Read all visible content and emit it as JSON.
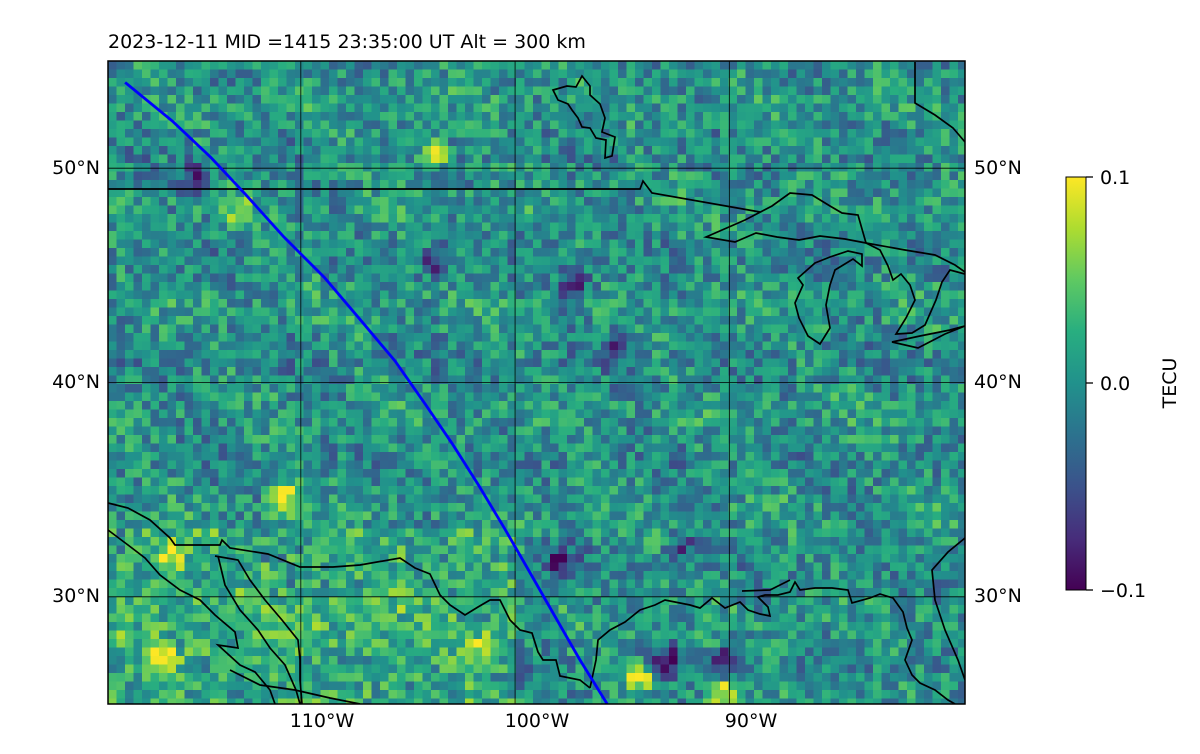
{
  "header": {
    "title": "2023-12-11  MID =1415    23:35:00  UT  Alt = 300 km"
  },
  "map": {
    "lon_range": [
      -119,
      -79
    ],
    "lat_range": [
      25,
      55
    ],
    "lon_grid": [
      -110,
      -100,
      -90
    ],
    "lat_grid": [
      30,
      40,
      50
    ],
    "lon_tick_labels": [
      "110°W",
      "100°W",
      "90°W"
    ],
    "lat_tick_labels_left": [
      "30°N",
      "40°N",
      "50°N"
    ],
    "lat_tick_labels_right": [
      "30°N",
      "40°N",
      "50°N"
    ],
    "colormap": "viridis",
    "track_color": "#0000ff",
    "track": [
      [
        -118.2,
        54.0
      ],
      [
        -116.0,
        52.2
      ],
      [
        -114.2,
        50.5
      ],
      [
        -112.6,
        48.8
      ],
      [
        -110.8,
        46.8
      ],
      [
        -108.9,
        44.9
      ],
      [
        -107.2,
        42.9
      ],
      [
        -105.6,
        41.0
      ],
      [
        -104.2,
        39.0
      ],
      [
        -102.9,
        37.1
      ],
      [
        -101.7,
        35.2
      ],
      [
        -100.5,
        33.2
      ],
      [
        -99.4,
        31.3
      ],
      [
        -98.2,
        29.2
      ],
      [
        -97.0,
        27.1
      ],
      [
        -95.7,
        25.0
      ]
    ],
    "anomalies": [
      {
        "lon": -115,
        "lat": 49.6,
        "value": -0.09
      },
      {
        "lon": -103.7,
        "lat": 45.6,
        "value": -0.08
      },
      {
        "lon": -97.2,
        "lat": 44.6,
        "value": -0.09
      },
      {
        "lon": -103.8,
        "lat": 50.6,
        "value": 0.09
      },
      {
        "lon": -116.2,
        "lat": 31.8,
        "value": 0.1
      },
      {
        "lon": -110.8,
        "lat": 34.6,
        "value": 0.09
      },
      {
        "lon": -101.5,
        "lat": 27.5,
        "value": 0.08
      },
      {
        "lon": -93.0,
        "lat": 27.0,
        "value": -0.1
      },
      {
        "lon": -90.0,
        "lat": 27.0,
        "value": -0.1
      },
      {
        "lon": -94.2,
        "lat": 26.2,
        "value": 0.1
      },
      {
        "lon": -90.4,
        "lat": 25.5,
        "value": 0.1
      },
      {
        "lon": -116.5,
        "lat": 27.2,
        "value": 0.08
      },
      {
        "lon": -97.9,
        "lat": 31.7,
        "value": -0.09
      },
      {
        "lon": -112.9,
        "lat": 47.8,
        "value": 0.08
      },
      {
        "lon": -92.2,
        "lat": 32.3,
        "value": -0.06
      },
      {
        "lon": -95.3,
        "lat": 41.5,
        "value": -0.06
      }
    ]
  },
  "colorbar": {
    "label": "TECU",
    "ticks": [
      "0.1",
      "0.0",
      "−0.1"
    ],
    "range": [
      -0.1,
      0.1
    ]
  }
}
